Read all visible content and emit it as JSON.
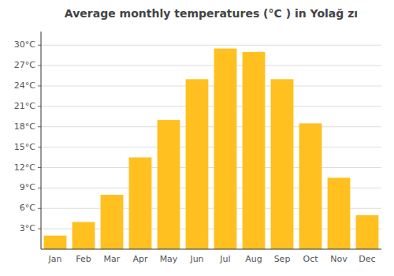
{
  "chart_data": {
    "type": "bar",
    "title": "Average monthly temperatures (°C ) in Yolağ zı",
    "categories": [
      "Jan",
      "Feb",
      "Mar",
      "Apr",
      "May",
      "Jun",
      "Jul",
      "Aug",
      "Sep",
      "Oct",
      "Nov",
      "Dec"
    ],
    "values": [
      2.0,
      4.0,
      8.0,
      13.5,
      19.0,
      25.0,
      29.5,
      29.0,
      25.0,
      18.5,
      10.5,
      5.0
    ],
    "color": "#FFC020",
    "ylim": [
      0,
      32
    ],
    "yticks": [
      {
        "value": 3,
        "label": "3°C"
      },
      {
        "value": 6,
        "label": "6°C"
      },
      {
        "value": 9,
        "label": "9°C"
      },
      {
        "value": 12,
        "label": "12°C"
      },
      {
        "value": 15,
        "label": "15°C"
      },
      {
        "value": 18,
        "label": "18°C"
      },
      {
        "value": 21,
        "label": "21°C"
      },
      {
        "value": 24,
        "label": "24°C"
      },
      {
        "value": 27,
        "label": "27°C"
      },
      {
        "value": 30,
        "label": "30°C"
      }
    ],
    "grid": true
  }
}
